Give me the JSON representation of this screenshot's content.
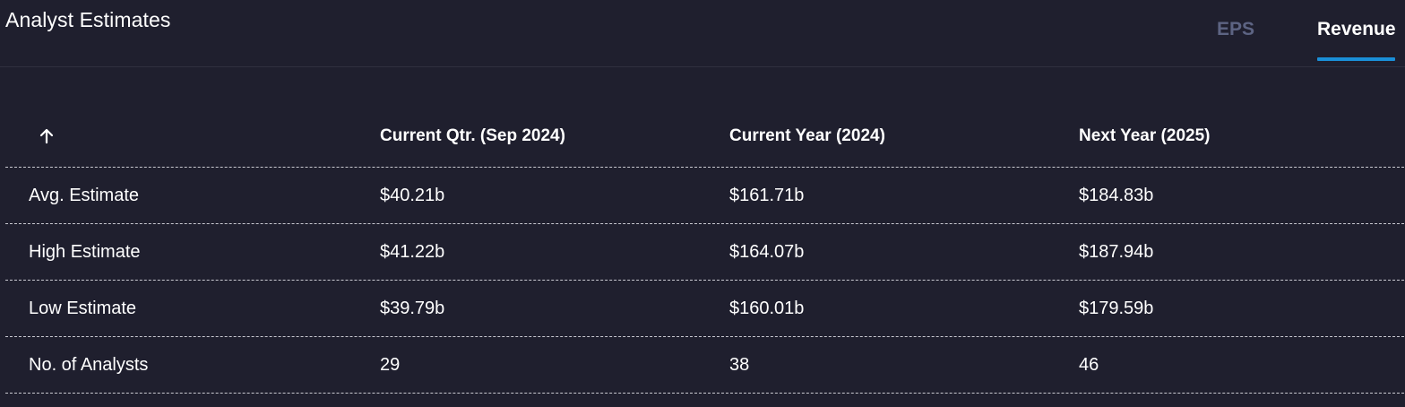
{
  "header": {
    "title": "Analyst Estimates",
    "tabs": [
      {
        "label": "EPS",
        "active": false
      },
      {
        "label": "Revenue",
        "active": true
      }
    ]
  },
  "table": {
    "sort_icon": "arrow-up-icon",
    "columns": [
      "Current Qtr. (Sep 2024)",
      "Current Year (2024)",
      "Next Year (2025)"
    ],
    "rows": [
      {
        "label": "Avg. Estimate",
        "values": [
          "$40.21b",
          "$161.71b",
          "$184.83b"
        ]
      },
      {
        "label": "High Estimate",
        "values": [
          "$41.22b",
          "$164.07b",
          "$187.94b"
        ]
      },
      {
        "label": "Low Estimate",
        "values": [
          "$39.79b",
          "$160.01b",
          "$179.59b"
        ]
      },
      {
        "label": "No. of Analysts",
        "values": [
          "29",
          "38",
          "46"
        ]
      }
    ]
  },
  "colors": {
    "background": "#1f1f2e",
    "accent": "#1a8fd8",
    "inactive_tab": "#5d6483"
  }
}
